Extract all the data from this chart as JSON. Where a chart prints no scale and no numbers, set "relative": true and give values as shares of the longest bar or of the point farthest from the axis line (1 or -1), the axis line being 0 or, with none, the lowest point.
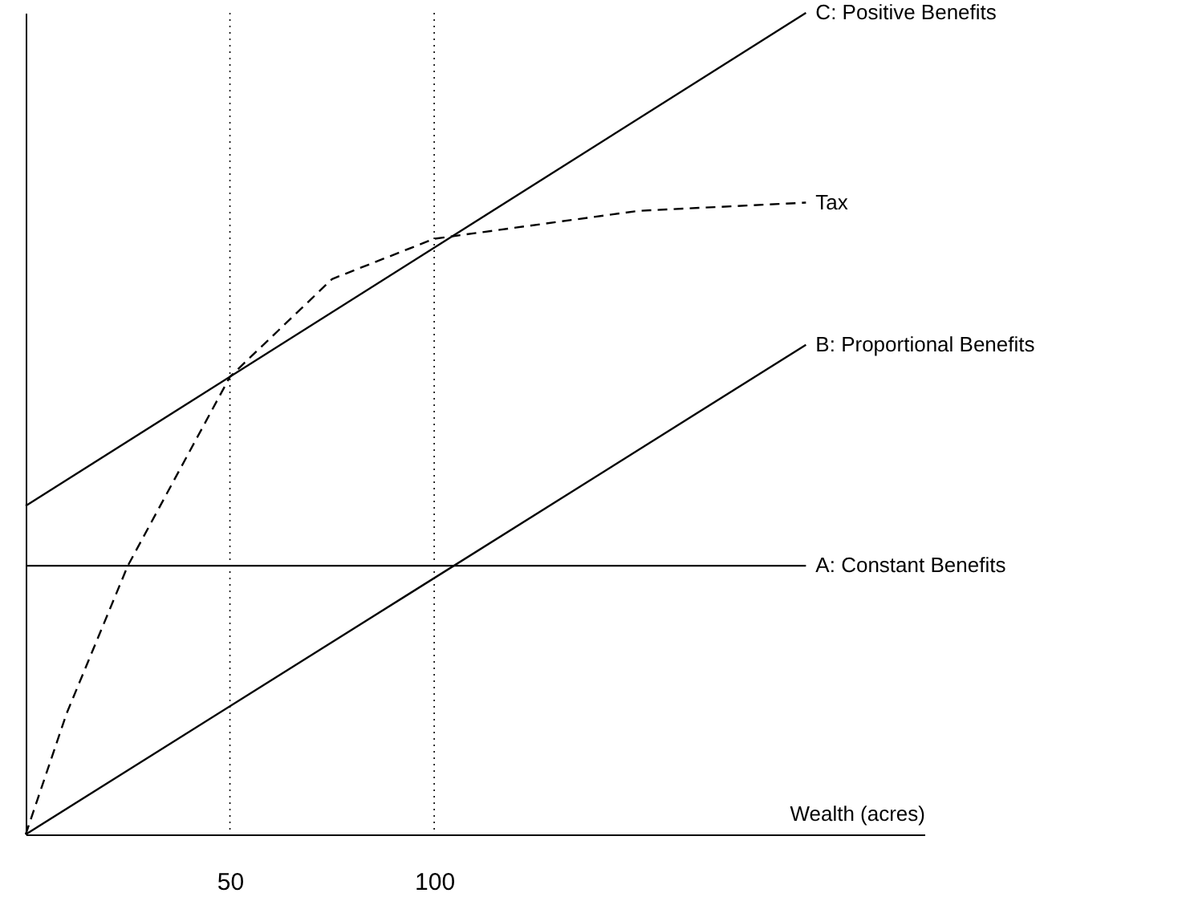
{
  "chart_data": {
    "type": "line",
    "xlabel": "Wealth (acres)",
    "relative": true,
    "tick_labels": "x",
    "xlim": [
      0,
      220
    ],
    "xticks": [
      50,
      100
    ],
    "series": [
      {
        "name": "C: Positive Benefits",
        "color": "#000000",
        "x": [
          0,
          191
        ],
        "values": [
          0.4,
          1
        ]
      },
      {
        "name": "Tax",
        "color": "#000000",
        "line_style": "dashed",
        "x": [
          0,
          10,
          25,
          50,
          75,
          100,
          150,
          191
        ],
        "values": [
          0,
          0.147,
          0.327,
          0.557,
          0.676,
          0.725,
          0.759,
          0.769
        ]
      },
      {
        "name": "B: Proportional Benefits",
        "color": "#000000",
        "x": [
          0,
          191
        ],
        "values": [
          0,
          0.596
        ]
      },
      {
        "name": "A: Constant Benefits",
        "color": "#000000",
        "x": [
          0,
          191
        ],
        "values": [
          0.327,
          0.327
        ]
      }
    ],
    "ref_lines": [
      {
        "axis": "x",
        "value": 50,
        "line_style": "dotted",
        "color": "#000000"
      },
      {
        "axis": "x",
        "value": 100,
        "line_style": "dotted",
        "color": "#000000"
      }
    ]
  }
}
